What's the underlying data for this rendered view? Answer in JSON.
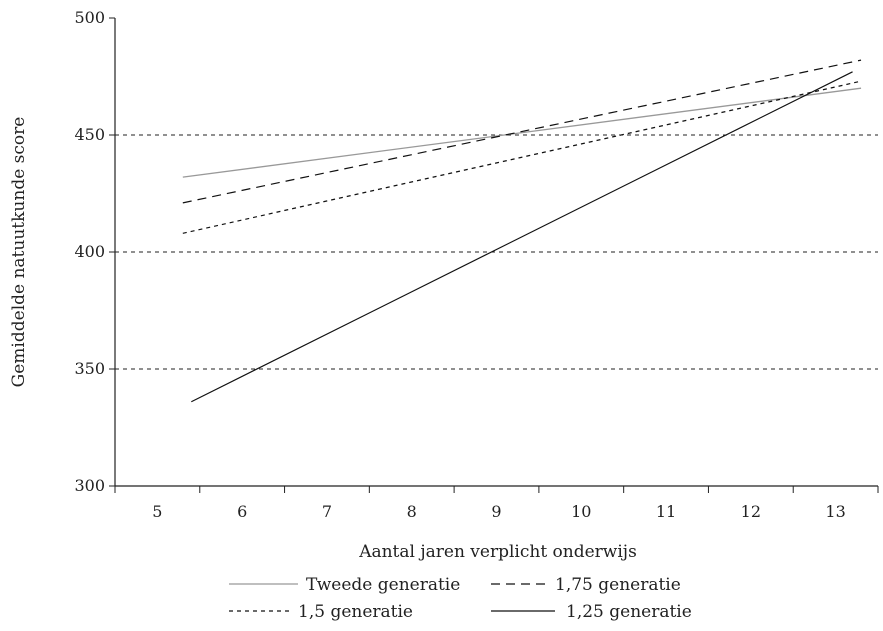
{
  "chart_data": {
    "type": "line",
    "xlabel": "Aantal jaren verplicht onderwijs",
    "ylabel": "Gemiddelde natuutkunde score",
    "x_ticks": [
      "5",
      "6",
      "7",
      "8",
      "9",
      "10",
      "11",
      "12",
      "13"
    ],
    "y_ticks": [
      "300",
      "350",
      "400",
      "450",
      "500"
    ],
    "xlim": [
      4.5,
      13.5
    ],
    "ylim": [
      300,
      500
    ],
    "grid": "horizontal dashed at 350, 400, 450",
    "legend_position": "bottom",
    "series": [
      {
        "name": "Tweede generatie",
        "style": "solid",
        "color": "#999999",
        "x": [
          5.3,
          13.3
        ],
        "y": [
          432,
          470
        ]
      },
      {
        "name": "1,75 generatie",
        "style": "longdash",
        "color": "#111111",
        "x": [
          5.3,
          13.3
        ],
        "y": [
          421,
          482
        ]
      },
      {
        "name": "1,5 generatie",
        "style": "shortdash",
        "color": "#111111",
        "x": [
          5.3,
          13.3
        ],
        "y": [
          408,
          473
        ]
      },
      {
        "name": "1,25 generatie",
        "style": "solid",
        "color": "#111111",
        "x": [
          5.4,
          13.2
        ],
        "y": [
          336,
          477
        ]
      }
    ]
  }
}
